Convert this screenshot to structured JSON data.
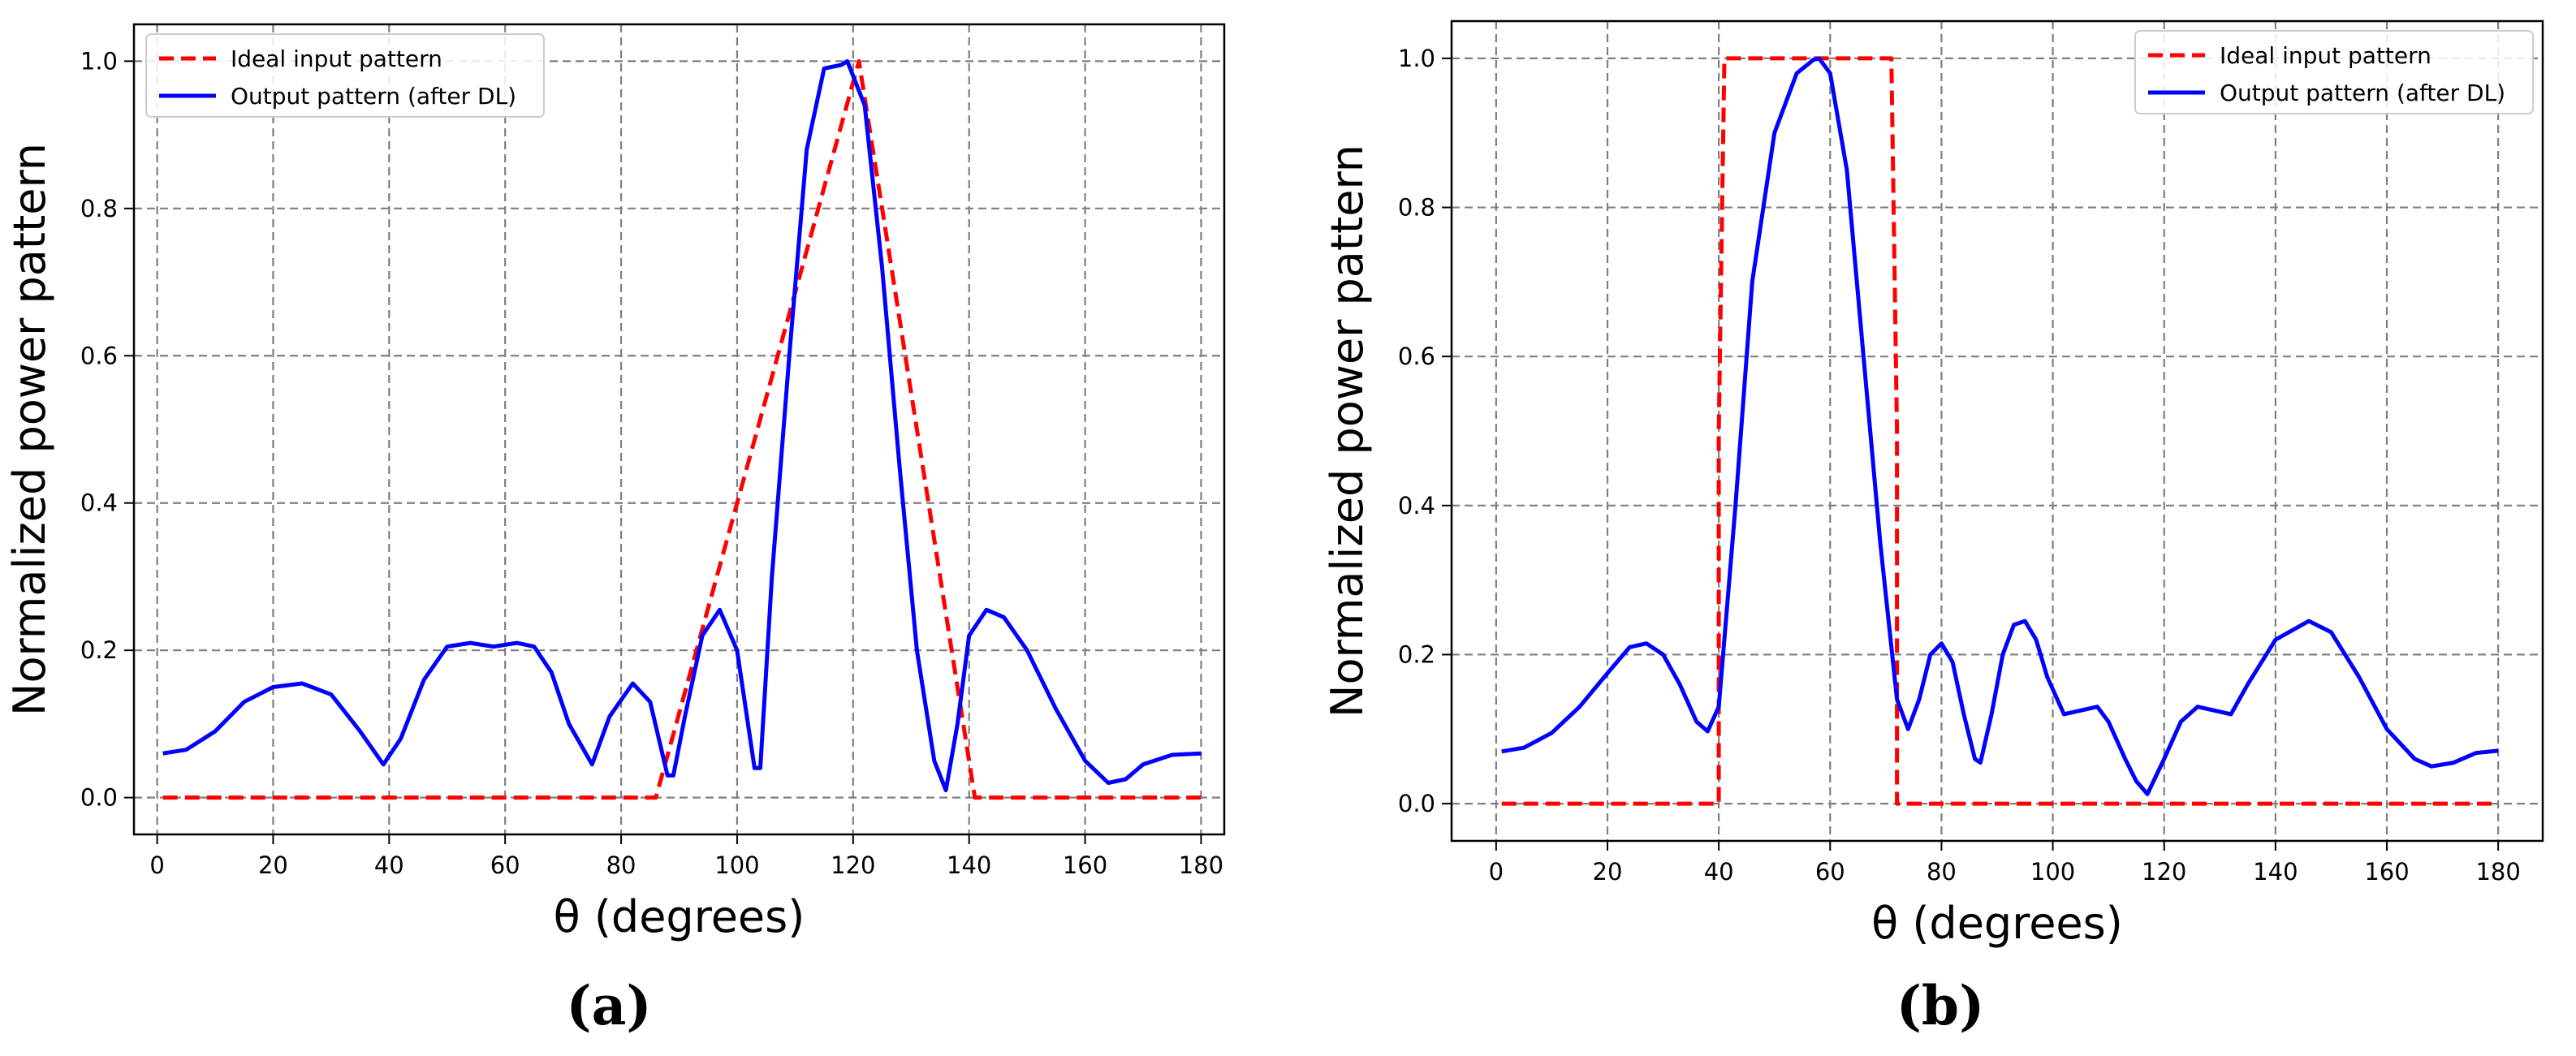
{
  "chart_data": [
    {
      "type": "line",
      "panel_label": "(a)",
      "xlabel": "θ (degrees)",
      "ylabel": "Normalized power pattern",
      "xlim": [
        -4,
        184
      ],
      "ylim": [
        -0.05,
        1.05
      ],
      "xticks": [
        "0",
        "20",
        "40",
        "60",
        "80",
        "100",
        "120",
        "140",
        "160",
        "180"
      ],
      "yticks": [
        "0.0",
        "0.2",
        "0.4",
        "0.6",
        "0.8",
        "1.0"
      ],
      "grid": true,
      "legend": "top-left",
      "series": [
        {
          "name": "Ideal input pattern",
          "color": "#ff0000",
          "style": "dashed",
          "x": [
            1,
            86,
            121,
            141,
            180
          ],
          "y": [
            0,
            0,
            1.0,
            0,
            0
          ]
        },
        {
          "name": "Output pattern (after DL)",
          "color": "#0000ff",
          "style": "solid",
          "x": [
            1,
            5,
            10,
            15,
            20,
            25,
            30,
            35,
            39,
            42,
            46,
            50,
            54,
            58,
            62,
            65,
            68,
            71,
            75,
            78,
            82,
            85,
            88,
            89,
            91,
            94,
            97,
            100,
            103,
            104,
            106,
            109,
            112,
            115,
            118,
            119,
            122,
            125,
            128,
            131,
            134,
            136,
            138,
            140,
            143,
            146,
            150,
            155,
            160,
            164,
            167,
            170,
            175,
            180
          ],
          "y": [
            0.06,
            0.065,
            0.09,
            0.13,
            0.15,
            0.155,
            0.14,
            0.09,
            0.045,
            0.08,
            0.16,
            0.205,
            0.21,
            0.205,
            0.21,
            0.205,
            0.17,
            0.1,
            0.045,
            0.11,
            0.155,
            0.13,
            0.03,
            0.03,
            0.11,
            0.22,
            0.255,
            0.2,
            0.04,
            0.04,
            0.3,
            0.6,
            0.88,
            0.99,
            0.995,
            1.0,
            0.94,
            0.72,
            0.45,
            0.2,
            0.05,
            0.01,
            0.1,
            0.22,
            0.255,
            0.245,
            0.2,
            0.12,
            0.05,
            0.02,
            0.025,
            0.045,
            0.058,
            0.06
          ]
        }
      ]
    },
    {
      "type": "line",
      "panel_label": "(b)",
      "xlabel": "θ (degrees)",
      "ylabel": "Normalized power pattern",
      "xlim": [
        -8,
        188
      ],
      "ylim": [
        -0.05,
        1.05
      ],
      "xticks": [
        "0",
        "20",
        "40",
        "60",
        "80",
        "100",
        "120",
        "140",
        "160",
        "180"
      ],
      "yticks": [
        "0.0",
        "0.2",
        "0.4",
        "0.6",
        "0.8",
        "1.0"
      ],
      "grid": true,
      "legend": "top-right",
      "series": [
        {
          "name": "Ideal input pattern",
          "color": "#ff0000",
          "style": "dashed",
          "x": [
            1,
            40,
            40,
            41,
            71,
            72,
            72,
            180
          ],
          "y": [
            0,
            0,
            0.5,
            1.0,
            1.0,
            0.5,
            0,
            0
          ]
        },
        {
          "name": "Output pattern (after DL)",
          "color": "#0000ff",
          "style": "solid",
          "x": [
            1,
            5,
            10,
            15,
            20,
            24,
            27,
            30,
            33,
            36,
            38,
            40,
            43,
            46,
            50,
            54,
            57,
            58,
            60,
            63,
            66,
            69,
            72,
            74,
            76,
            78,
            80,
            82,
            84,
            86,
            87,
            89,
            91,
            93,
            95,
            97,
            99,
            102,
            105,
            108,
            110,
            113,
            115,
            117,
            120,
            123,
            126,
            129,
            132,
            135,
            140,
            146,
            150,
            155,
            160,
            165,
            168,
            172,
            176,
            180
          ],
          "y": [
            0.07,
            0.075,
            0.095,
            0.13,
            0.175,
            0.21,
            0.215,
            0.2,
            0.16,
            0.11,
            0.097,
            0.13,
            0.4,
            0.7,
            0.9,
            0.98,
            0.998,
            1.0,
            0.98,
            0.85,
            0.6,
            0.35,
            0.14,
            0.1,
            0.14,
            0.2,
            0.215,
            0.19,
            0.12,
            0.06,
            0.055,
            0.12,
            0.2,
            0.24,
            0.245,
            0.22,
            0.17,
            0.12,
            0.125,
            0.13,
            0.11,
            0.06,
            0.03,
            0.013,
            0.06,
            0.11,
            0.13,
            0.125,
            0.12,
            0.16,
            0.22,
            0.245,
            0.23,
            0.17,
            0.1,
            0.06,
            0.05,
            0.055,
            0.068,
            0.071
          ]
        }
      ]
    }
  ]
}
